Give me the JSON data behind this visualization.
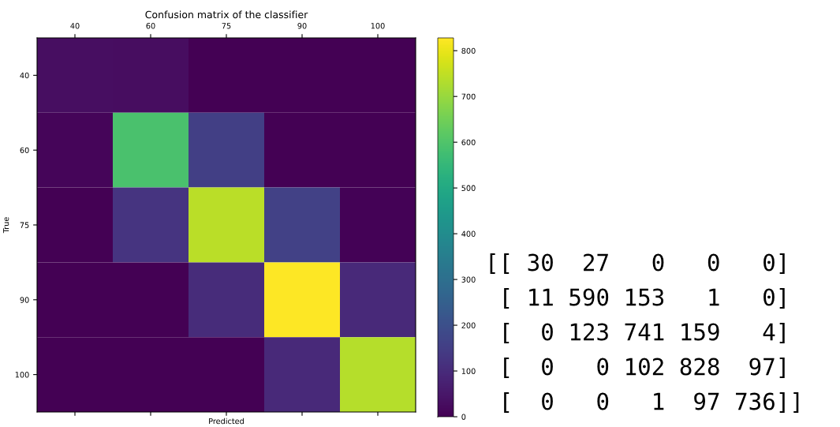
{
  "chart_data": {
    "type": "heatmap",
    "title": "Confusion matrix of the classifier",
    "xlabel": "Predicted",
    "ylabel": "True",
    "categories": [
      "40",
      "60",
      "75",
      "90",
      "100"
    ],
    "y_categories": [
      "40",
      "60",
      "75",
      "90",
      "100"
    ],
    "cells": [
      [
        30,
        27,
        0,
        0,
        0
      ],
      [
        11,
        590,
        153,
        1,
        0
      ],
      [
        0,
        123,
        741,
        159,
        4
      ],
      [
        0,
        0,
        102,
        828,
        97
      ],
      [
        0,
        0,
        1,
        97,
        736
      ]
    ],
    "clim": [
      0,
      828
    ],
    "cticks": [
      0,
      100,
      200,
      300,
      400,
      500,
      600,
      700,
      800
    ],
    "annotations": [
      "[[ 30  27   0   0   0]",
      " [ 11 590 153   1   0]",
      " [  0 123 741 159   4]",
      " [  0   0 102 828  97]",
      " [  0   0   1  97 736]]"
    ]
  }
}
